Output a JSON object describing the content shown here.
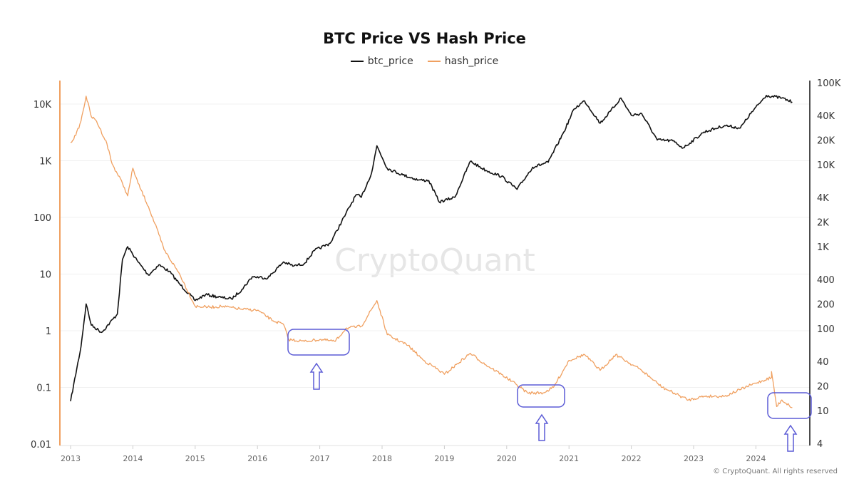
{
  "chart_data": {
    "type": "line",
    "title": "BTC Price VS Hash Price",
    "legend_position": "top-center",
    "grid": true,
    "x_axis": {
      "ticks": [
        "2013",
        "2014",
        "2015",
        "2016",
        "2017",
        "2018",
        "2019",
        "2020",
        "2021",
        "2022",
        "2023",
        "2024"
      ],
      "range": [
        "2012-12",
        "2024-11"
      ]
    },
    "y_left": {
      "scale": "log",
      "series": "hash_price",
      "ticks": [
        "0.01",
        "0.1",
        "1",
        "10",
        "100",
        "1K",
        "10K"
      ],
      "tick_values": [
        0.01,
        0.1,
        1,
        10,
        100,
        1000,
        10000
      ],
      "color": "#f0a060"
    },
    "y_right": {
      "scale": "log",
      "series": "btc_price",
      "ticks": [
        "4",
        "10",
        "20",
        "40",
        "100",
        "200",
        "400",
        "1K",
        "2K",
        "4K",
        "10K",
        "20K",
        "40K",
        "100K"
      ],
      "tick_values": [
        4,
        10,
        20,
        40,
        100,
        200,
        400,
        1000,
        2000,
        4000,
        10000,
        20000,
        40000,
        100000
      ],
      "color": "#111111"
    },
    "series": [
      {
        "name": "btc_price",
        "axis": "right",
        "color": "#111111",
        "points": [
          [
            "2013-01",
            13
          ],
          [
            "2013-03",
            60
          ],
          [
            "2013-04",
            200
          ],
          [
            "2013-05",
            110
          ],
          [
            "2013-07",
            90
          ],
          [
            "2013-10",
            150
          ],
          [
            "2013-11",
            700
          ],
          [
            "2013-12",
            1000
          ],
          [
            "2014-02",
            650
          ],
          [
            "2014-04",
            450
          ],
          [
            "2014-06",
            600
          ],
          [
            "2014-08",
            500
          ],
          [
            "2014-10",
            350
          ],
          [
            "2015-01",
            220
          ],
          [
            "2015-03",
            260
          ],
          [
            "2015-06",
            240
          ],
          [
            "2015-08",
            230
          ],
          [
            "2015-10",
            300
          ],
          [
            "2015-12",
            430
          ],
          [
            "2016-03",
            415
          ],
          [
            "2016-06",
            650
          ],
          [
            "2016-08",
            580
          ],
          [
            "2016-10",
            620
          ],
          [
            "2016-12",
            900
          ],
          [
            "2017-03",
            1100
          ],
          [
            "2017-06",
            2500
          ],
          [
            "2017-08",
            4300
          ],
          [
            "2017-09",
            4000
          ],
          [
            "2017-11",
            8000
          ],
          [
            "2017-12",
            17000
          ],
          [
            "2018-02",
            9000
          ],
          [
            "2018-05",
            7500
          ],
          [
            "2018-08",
            6500
          ],
          [
            "2018-10",
            6400
          ],
          [
            "2018-12",
            3500
          ],
          [
            "2019-03",
            4000
          ],
          [
            "2019-06",
            11000
          ],
          [
            "2019-09",
            8500
          ],
          [
            "2019-12",
            7200
          ],
          [
            "2020-03",
            5000
          ],
          [
            "2020-06",
            9300
          ],
          [
            "2020-09",
            10700
          ],
          [
            "2020-12",
            25000
          ],
          [
            "2021-02",
            48000
          ],
          [
            "2021-04",
            60000
          ],
          [
            "2021-07",
            32000
          ],
          [
            "2021-09",
            45000
          ],
          [
            "2021-11",
            65000
          ],
          [
            "2022-01",
            40000
          ],
          [
            "2022-03",
            42000
          ],
          [
            "2022-06",
            20000
          ],
          [
            "2022-09",
            19500
          ],
          [
            "2022-11",
            16000
          ],
          [
            "2023-03",
            25000
          ],
          [
            "2023-07",
            30000
          ],
          [
            "2023-10",
            28000
          ],
          [
            "2023-12",
            42000
          ],
          [
            "2024-03",
            70000
          ],
          [
            "2024-06",
            65000
          ],
          [
            "2024-08",
            58000
          ]
        ]
      },
      {
        "name": "hash_price",
        "axis": "left",
        "color": "#f0a060",
        "points": [
          [
            "2013-01",
            2100
          ],
          [
            "2013-02",
            2800
          ],
          [
            "2013-03",
            5000
          ],
          [
            "2013-04",
            13800
          ],
          [
            "2013-05",
            6000
          ],
          [
            "2013-06",
            5000
          ],
          [
            "2013-08",
            2000
          ],
          [
            "2013-09",
            880
          ],
          [
            "2013-11",
            400
          ],
          [
            "2013-12",
            240
          ],
          [
            "2014-01",
            740
          ],
          [
            "2014-02",
            400
          ],
          [
            "2014-04",
            155
          ],
          [
            "2014-06",
            50
          ],
          [
            "2014-07",
            27
          ],
          [
            "2014-10",
            10
          ],
          [
            "2015-01",
            2.7
          ],
          [
            "2015-04",
            2.6
          ],
          [
            "2015-06",
            2.7
          ],
          [
            "2015-10",
            2.4
          ],
          [
            "2016-01",
            2.3
          ],
          [
            "2016-04",
            1.5
          ],
          [
            "2016-06",
            1.3
          ],
          [
            "2016-07",
            0.7
          ],
          [
            "2016-10",
            0.65
          ],
          [
            "2017-01",
            0.7
          ],
          [
            "2017-04",
            0.65
          ],
          [
            "2017-06",
            1.1
          ],
          [
            "2017-09",
            1.2
          ],
          [
            "2017-12",
            3.4
          ],
          [
            "2018-02",
            0.85
          ],
          [
            "2018-06",
            0.55
          ],
          [
            "2018-09",
            0.3
          ],
          [
            "2018-11",
            0.23
          ],
          [
            "2019-01",
            0.17
          ],
          [
            "2019-06",
            0.4
          ],
          [
            "2019-09",
            0.25
          ],
          [
            "2019-12",
            0.17
          ],
          [
            "2020-03",
            0.11
          ],
          [
            "2020-05",
            0.08
          ],
          [
            "2020-08",
            0.08
          ],
          [
            "2020-10",
            0.1
          ],
          [
            "2021-01",
            0.3
          ],
          [
            "2021-04",
            0.38
          ],
          [
            "2021-07",
            0.2
          ],
          [
            "2021-10",
            0.38
          ],
          [
            "2022-03",
            0.2
          ],
          [
            "2022-07",
            0.1
          ],
          [
            "2022-12",
            0.06
          ],
          [
            "2023-03",
            0.07
          ],
          [
            "2023-07",
            0.07
          ],
          [
            "2023-12",
            0.11
          ],
          [
            "2024-04",
            0.15
          ],
          [
            "2024-04",
            0.19
          ],
          [
            "2024-05",
            0.046
          ],
          [
            "2024-06",
            0.06
          ],
          [
            "2024-08",
            0.044
          ]
        ]
      }
    ],
    "annotations": {
      "color": "#5b5bd6",
      "highlights": [
        "2016-07 to 2017-06",
        "2020-05 to 2020-12",
        "2024-05 to 2024-08"
      ]
    }
  },
  "watermark": "CryptoQuant",
  "footer": "© CryptoQuant. All rights reserved"
}
